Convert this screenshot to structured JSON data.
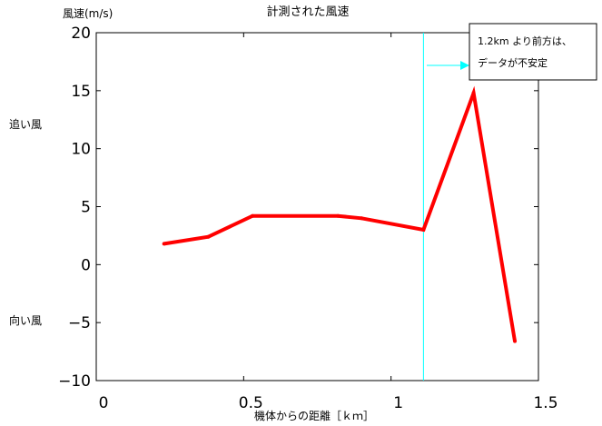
{
  "chart_data": {
    "type": "line",
    "title": "計測された風速",
    "xlabel": "機体からの距離［ｋｍ］",
    "ylabel": "風速(m/s)",
    "xlim": [
      0,
      1.5
    ],
    "ylim": [
      -10,
      20
    ],
    "xticks": [
      0,
      0.5,
      1,
      1.5
    ],
    "xtick_labels": [
      "0",
      "0.5",
      "1",
      "1.5"
    ],
    "yticks": [
      -10,
      -5,
      0,
      5,
      10,
      15,
      20
    ],
    "ytick_labels": [
      "−10",
      "−5",
      "0",
      "5",
      "10",
      "15",
      "20"
    ],
    "grid": false,
    "series": [
      {
        "color": "#ff0000",
        "x": [
          0.23,
          0.38,
          0.53,
          0.82,
          0.9,
          1.11,
          1.28,
          1.42
        ],
        "y": [
          1.8,
          2.4,
          4.2,
          4.2,
          4.0,
          3.0,
          14.8,
          -6.6
        ]
      }
    ],
    "reference_line": {
      "x": 1.11,
      "color": "#00ffff"
    },
    "side_labels": {
      "tailwind": "追い風",
      "headwind": "向い風"
    },
    "annotation": {
      "line1": "1.2km より前方は、",
      "line2": "データが不安定"
    }
  }
}
